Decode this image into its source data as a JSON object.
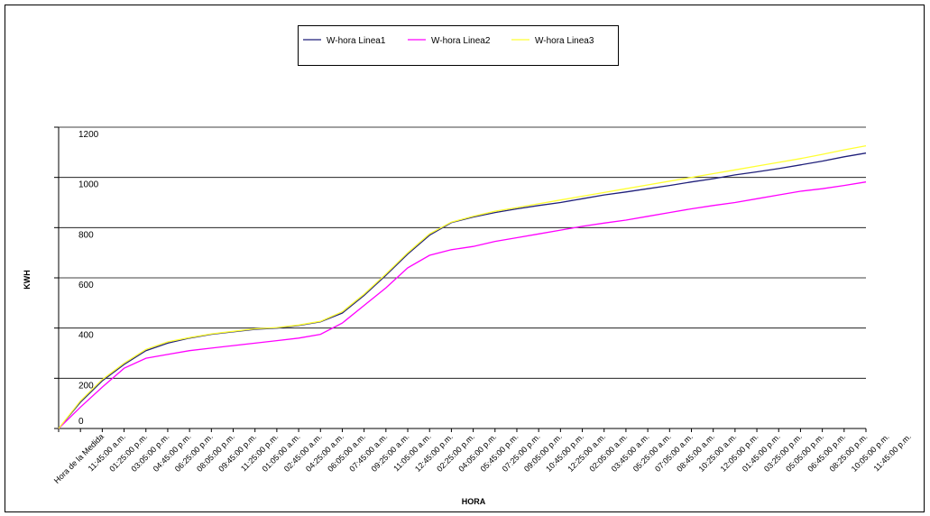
{
  "chart_data": {
    "type": "line",
    "x_label": "HORA",
    "y_label": "KWH",
    "categories": [
      "Hora de la Medida",
      "11:45:00 a.m.",
      "01:25:00 p.m.",
      "03:05:00 p.m.",
      "04:45:00 p.m.",
      "06:25:00 p.m.",
      "08:05:00 p.m.",
      "09:45:00 p.m.",
      "11:25:00 p.m.",
      "01:05:00 a.m.",
      "02:45:00 a.m.",
      "04:25:00 a.m.",
      "06:05:00 a.m.",
      "07:45:00 a.m.",
      "09:25:00 a.m.",
      "11:05:00 a.m.",
      "12:45:00 p.m.",
      "02:25:00 p.m.",
      "04:05:00 p.m.",
      "05:45:00 p.m.",
      "07:25:00 p.m.",
      "09:05:00 p.m.",
      "10:45:00 p.m.",
      "12:25:00 a.m.",
      "02:05:00 a.m.",
      "03:45:00 a.m.",
      "05:25:00 a.m.",
      "07:05:00 a.m.",
      "08:45:00 a.m.",
      "10:25:00 a.m.",
      "12:05:00 p.m.",
      "01:45:00 p.m.",
      "03:25:00 p.m.",
      "05:05:00 p.m.",
      "06:45:00 p.m.",
      "08:25:00 p.m.",
      "10:05:00 p.m.",
      "11:45:00 p.m."
    ],
    "series": [
      {
        "name": "W-hora Linea1",
        "color": "#1f1f7a",
        "values": [
          0,
          105,
          190,
          255,
          310,
          340,
          360,
          375,
          385,
          395,
          400,
          410,
          425,
          460,
          530,
          610,
          695,
          770,
          820,
          842,
          860,
          875,
          888,
          900,
          915,
          930,
          942,
          955,
          968,
          982,
          995,
          1010,
          1022,
          1035,
          1050,
          1065,
          1082,
          1097
        ]
      },
      {
        "name": "W-hora Linea2",
        "color": "#ff00ff",
        "values": [
          0,
          85,
          165,
          240,
          280,
          295,
          310,
          320,
          330,
          340,
          350,
          360,
          375,
          420,
          490,
          560,
          640,
          690,
          712,
          725,
          745,
          760,
          775,
          790,
          805,
          818,
          830,
          845,
          860,
          875,
          888,
          900,
          915,
          930,
          945,
          955,
          968,
          982
        ]
      },
      {
        "name": "W-hora Linea3",
        "color": "#ffff33",
        "values": [
          0,
          110,
          195,
          260,
          315,
          345,
          362,
          377,
          387,
          397,
          402,
          412,
          427,
          465,
          535,
          615,
          700,
          775,
          822,
          845,
          865,
          880,
          895,
          910,
          925,
          940,
          955,
          970,
          985,
          1000,
          1015,
          1030,
          1045,
          1060,
          1075,
          1092,
          1110,
          1126
        ]
      }
    ],
    "ylim": [
      0,
      1200
    ],
    "yticks": [
      0,
      200,
      400,
      600,
      800,
      1000,
      1200
    ],
    "grid": true
  }
}
